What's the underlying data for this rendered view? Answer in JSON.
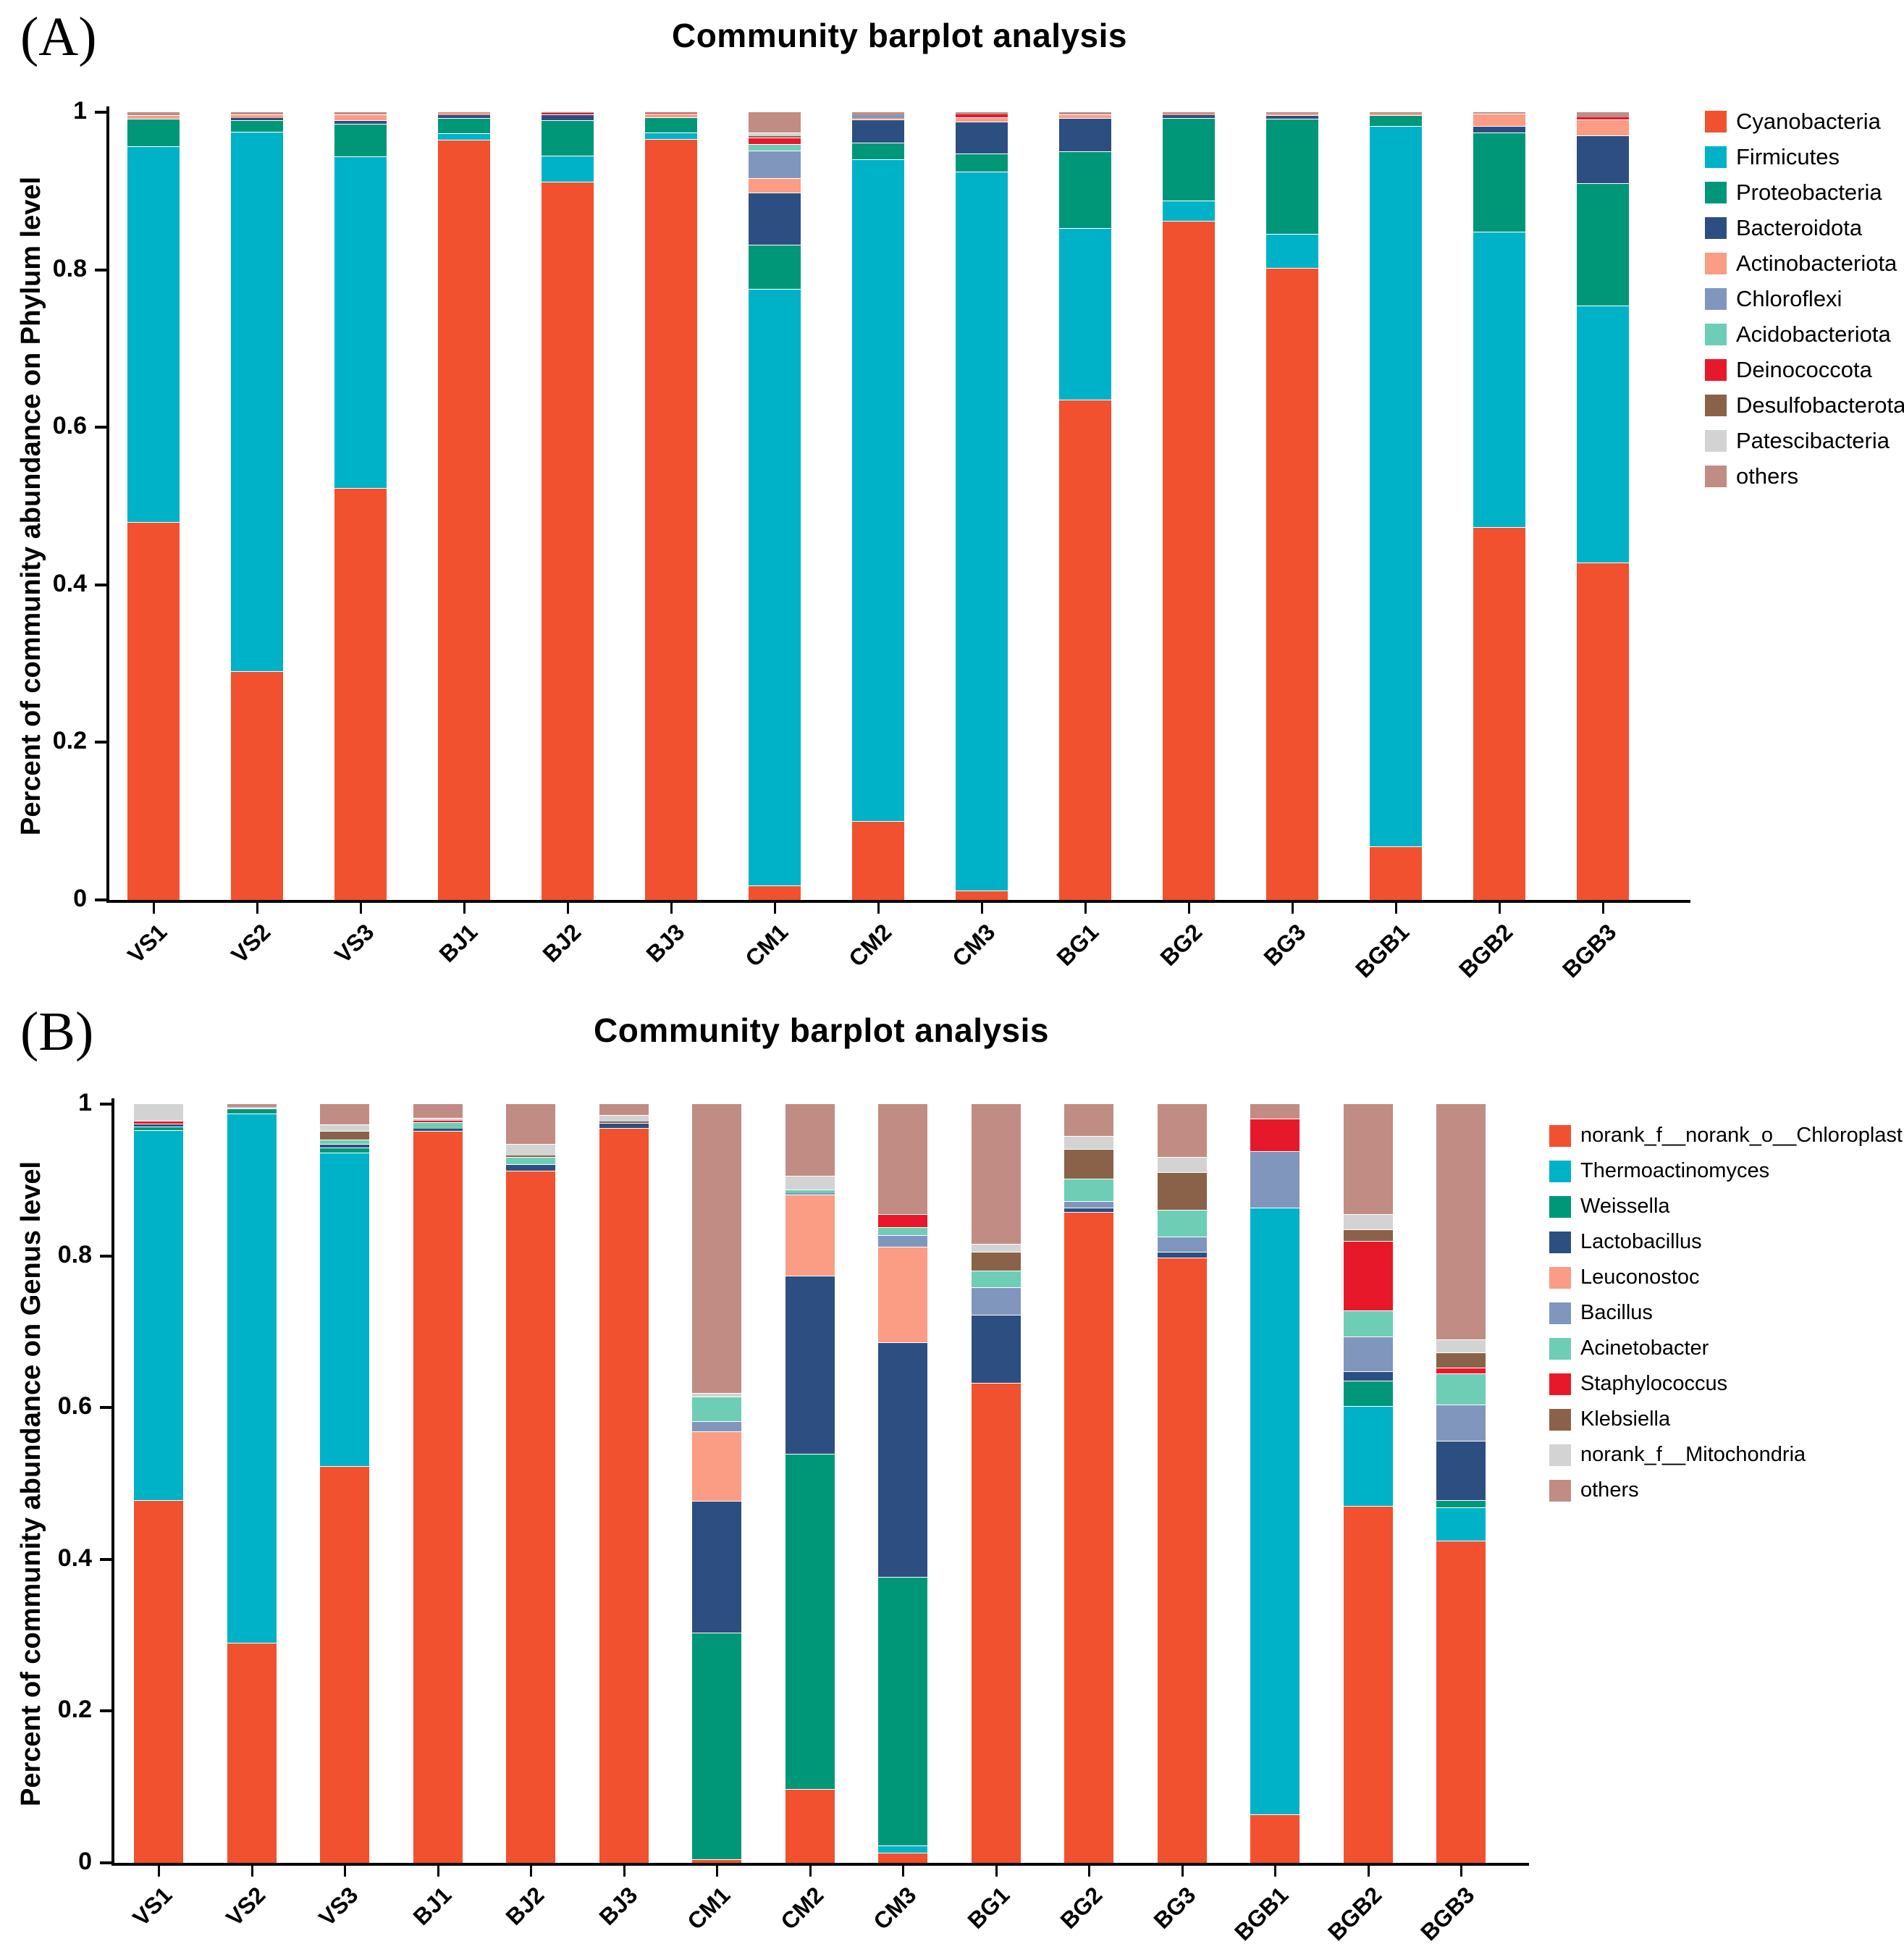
{
  "figure": {
    "panels": [
      {
        "label": "(A)"
      },
      {
        "label": "(B)"
      }
    ]
  },
  "chart_data": [
    {
      "type": "bar",
      "stacked": true,
      "title": "Community barplot analysis",
      "xlabel": "",
      "ylabel": "Percent of community abundance on Phylum level",
      "ylim": [
        0,
        1
      ],
      "yticks": [
        0,
        0.2,
        0.4,
        0.6,
        0.8,
        1
      ],
      "grid": false,
      "legend_position": "right",
      "categories": [
        "VS1",
        "VS2",
        "VS3",
        "BJ1",
        "BJ2",
        "BJ3",
        "CM1",
        "CM2",
        "CM3",
        "BG1",
        "BG2",
        "BG3",
        "BGB1",
        "BGB2",
        "BGB3"
      ],
      "series": [
        {
          "name": "Cyanobacteria",
          "color": "#f1512e",
          "values": [
            0.48,
            0.29,
            0.523,
            0.965,
            0.912,
            0.966,
            0.018,
            0.1,
            0.012,
            0.635,
            0.862,
            0.802,
            0.068,
            0.473,
            0.428
          ]
        },
        {
          "name": "Firmicutes",
          "color": "#00b2c8",
          "values": [
            0.477,
            0.685,
            0.421,
            0.008,
            0.033,
            0.008,
            0.758,
            0.84,
            0.913,
            0.218,
            0.026,
            0.044,
            0.915,
            0.375,
            0.327
          ]
        },
        {
          "name": "Proteobacteria",
          "color": "#009779",
          "values": [
            0.035,
            0.015,
            0.041,
            0.02,
            0.045,
            0.02,
            0.056,
            0.021,
            0.023,
            0.097,
            0.105,
            0.146,
            0.013,
            0.126,
            0.155
          ]
        },
        {
          "name": "Bacteroidota",
          "color": "#2d4e81",
          "values": [
            0,
            0.003,
            0.005,
            0.003,
            0.007,
            0,
            0.066,
            0.03,
            0.04,
            0.043,
            0.003,
            0.004,
            0,
            0.009,
            0.061
          ]
        },
        {
          "name": "Actinobacteriota",
          "color": "#fb9c85",
          "values": [
            0.004,
            0.004,
            0.007,
            0.003,
            0,
            0.004,
            0.018,
            0.002,
            0.006,
            0.004,
            0.002,
            0.002,
            0.002,
            0.015,
            0.02
          ]
        },
        {
          "name": "Chloroflexi",
          "color": "#8096bd",
          "values": [
            0,
            0,
            0,
            0,
            0,
            0,
            0.035,
            0.003,
            0,
            0,
            0,
            0,
            0,
            0,
            0
          ]
        },
        {
          "name": "Acidobacteriota",
          "color": "#6ecdb5",
          "values": [
            0,
            0,
            0,
            0,
            0,
            0,
            0.009,
            0,
            0,
            0,
            0,
            0,
            0,
            0,
            0
          ]
        },
        {
          "name": "Deinococcota",
          "color": "#e8182b",
          "values": [
            0,
            0,
            0,
            0,
            0.002,
            0.001,
            0.008,
            0,
            0.003,
            0,
            0,
            0,
            0,
            0,
            0.003
          ]
        },
        {
          "name": "Desulfobacterota",
          "color": "#8a6249",
          "values": [
            0,
            0,
            0,
            0,
            0,
            0,
            0.002,
            0,
            0,
            0,
            0,
            0,
            0,
            0,
            0
          ]
        },
        {
          "name": "Patescibacteria",
          "color": "#d3d3d3",
          "values": [
            0,
            0,
            0,
            0,
            0,
            0,
            0.004,
            0,
            0,
            0,
            0,
            0,
            0,
            0,
            0
          ]
        },
        {
          "name": "others",
          "color": "#c18c83",
          "values": [
            0.004,
            0.003,
            0.003,
            0.001,
            0.001,
            0.001,
            0.026,
            0.004,
            0.003,
            0.003,
            0.002,
            0.002,
            0.002,
            0.002,
            0.006
          ]
        }
      ]
    },
    {
      "type": "bar",
      "stacked": true,
      "title": "Community barplot analysis",
      "xlabel": "",
      "ylabel": "Percent of community abundance on Genus level",
      "ylim": [
        0,
        1
      ],
      "yticks": [
        0,
        0.2,
        0.4,
        0.6,
        0.8,
        1
      ],
      "grid": false,
      "legend_position": "right",
      "categories": [
        "VS1",
        "VS2",
        "VS3",
        "BJ1",
        "BJ2",
        "BJ3",
        "CM1",
        "CM2",
        "CM3",
        "BG1",
        "BG2",
        "BG3",
        "BGB1",
        "BGB2",
        "BGB3"
      ],
      "series": [
        {
          "name": "norank_f__norank_o__Chloroplast",
          "color": "#f1512e",
          "values": [
            0.478,
            0.29,
            0.523,
            0.965,
            0.912,
            0.969,
            0.005,
            0.097,
            0.013,
            0.633,
            0.858,
            0.798,
            0.064,
            0.47,
            0.425
          ]
        },
        {
          "name": "Thermoactinomyces",
          "color": "#00b2c8",
          "values": [
            0.488,
            0.698,
            0.413,
            0,
            0,
            0,
            0,
            0,
            0.01,
            0,
            0,
            0,
            0.8,
            0.132,
            0.044
          ]
        },
        {
          "name": "Weissella",
          "color": "#009779",
          "values": [
            0.004,
            0.006,
            0.007,
            0,
            0,
            0,
            0.298,
            0.442,
            0.354,
            0,
            0,
            0,
            0,
            0.034,
            0.009
          ]
        },
        {
          "name": "Lactobacillus",
          "color": "#2d4e81",
          "values": [
            0.004,
            0,
            0.005,
            0.003,
            0.009,
            0.006,
            0.174,
            0.235,
            0.309,
            0.089,
            0.006,
            0.007,
            0,
            0.012,
            0.078
          ]
        },
        {
          "name": "Leuconostoc",
          "color": "#fb9c85",
          "values": [
            0,
            0,
            0,
            0,
            0,
            0,
            0.092,
            0.107,
            0.126,
            0,
            0,
            0,
            0,
            0,
            0
          ]
        },
        {
          "name": "Bacillus",
          "color": "#8096bd",
          "values": [
            0,
            0,
            0,
            0,
            0,
            0,
            0.013,
            0.002,
            0.015,
            0.037,
            0.008,
            0.02,
            0.074,
            0.046,
            0.048
          ]
        },
        {
          "name": "Acinetobacter",
          "color": "#6ecdb5",
          "values": [
            0,
            0,
            0.005,
            0.008,
            0.009,
            0,
            0.033,
            0.004,
            0.011,
            0.022,
            0.03,
            0.036,
            0,
            0.034,
            0.041
          ]
        },
        {
          "name": "Staphylococcus",
          "color": "#e8182b",
          "values": [
            0.004,
            0,
            0,
            0.002,
            0,
            0,
            0,
            0,
            0.017,
            0,
            0,
            0,
            0.043,
            0.092,
            0.008
          ]
        },
        {
          "name": "Klebsiella",
          "color": "#8a6249",
          "values": [
            0,
            0,
            0.012,
            0,
            0.002,
            0.002,
            0,
            0,
            0,
            0.024,
            0.039,
            0.049,
            0,
            0.015,
            0.02
          ]
        },
        {
          "name": "norank_f__Mitochondria",
          "color": "#d3d3d3",
          "values": [
            0.022,
            0.002,
            0.008,
            0.004,
            0.016,
            0.009,
            0.004,
            0.019,
            0,
            0.011,
            0.017,
            0.02,
            0,
            0.02,
            0.017
          ]
        },
        {
          "name": "others",
          "color": "#c18c83",
          "values": [
            0,
            0.004,
            0.027,
            0.018,
            0.052,
            0.014,
            0.381,
            0.094,
            0.145,
            0.184,
            0.042,
            0.07,
            0.019,
            0.145,
            0.31
          ]
        }
      ]
    }
  ]
}
